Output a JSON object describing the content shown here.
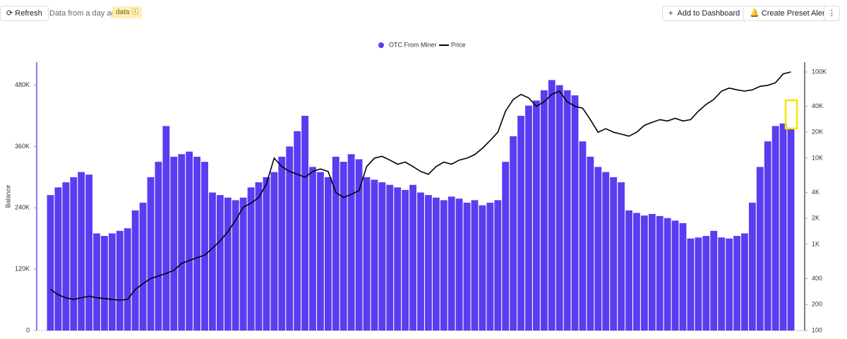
{
  "toolbar": {
    "refresh": "Refresh",
    "status": "Data from a day ago",
    "badge": "data",
    "add": "Add to Dashboard",
    "alert": "Create Preset Alert"
  },
  "chart_data": {
    "type": "combo",
    "y_label": "Balance",
    "categories": [
      null,
      null,
      null,
      null,
      null,
      null,
      null,
      null,
      null,
      null,
      null,
      null,
      null,
      null,
      null,
      null,
      null,
      null,
      null,
      null,
      null,
      null,
      null,
      null,
      null,
      null,
      null,
      null,
      null,
      null,
      null,
      null,
      null,
      null,
      null,
      null,
      null,
      null,
      null,
      null,
      null,
      null,
      null,
      null,
      null,
      null,
      null,
      null,
      null,
      null,
      null,
      null,
      null,
      null,
      null,
      null,
      null,
      null,
      null,
      null,
      null,
      null,
      null,
      null,
      null,
      null,
      null,
      null,
      null,
      null,
      null,
      null,
      null,
      null,
      null,
      null,
      null,
      null,
      null,
      null,
      null,
      null,
      null,
      null,
      null,
      null,
      null,
      null,
      null,
      null,
      null,
      null,
      null,
      null,
      null,
      null,
      null
    ],
    "series": [
      {
        "name": "OTC From Miner",
        "type": "bar",
        "color": "#5b3cf0",
        "values": [
          265000,
          280000,
          290000,
          300000,
          310000,
          305000,
          190000,
          185000,
          190000,
          195000,
          200000,
          235000,
          250000,
          300000,
          330000,
          400000,
          340000,
          345000,
          350000,
          340000,
          330000,
          270000,
          265000,
          260000,
          255000,
          260000,
          280000,
          290000,
          300000,
          310000,
          340000,
          360000,
          390000,
          420000,
          320000,
          310000,
          300000,
          340000,
          330000,
          345000,
          335000,
          300000,
          295000,
          290000,
          285000,
          280000,
          275000,
          285000,
          270000,
          265000,
          260000,
          255000,
          262000,
          258000,
          250000,
          255000,
          245000,
          250000,
          255000,
          330000,
          380000,
          420000,
          440000,
          450000,
          470000,
          490000,
          480000,
          470000,
          460000,
          370000,
          340000,
          320000,
          310000,
          300000,
          290000,
          235000,
          230000,
          225000,
          228000,
          224000,
          220000,
          215000,
          210000,
          180000,
          182000,
          185000,
          195000,
          182000,
          180000,
          185000,
          190000,
          250000,
          320000,
          370000,
          400000,
          405000,
          395000
        ]
      },
      {
        "name": "Price",
        "type": "line",
        "axis": "y2",
        "color": "#000000",
        "values": [
          300,
          260,
          240,
          230,
          240,
          250,
          240,
          235,
          230,
          225,
          230,
          300,
          350,
          400,
          430,
          460,
          500,
          600,
          650,
          700,
          750,
          900,
          1100,
          1400,
          1900,
          2700,
          3000,
          3500,
          5000,
          10000,
          8000,
          7000,
          6500,
          6000,
          7000,
          7500,
          7000,
          4000,
          3500,
          3800,
          4200,
          8000,
          10000,
          10500,
          9500,
          8500,
          9000,
          8000,
          7000,
          6500,
          8000,
          9000,
          8500,
          9500,
          10000,
          11000,
          13000,
          16000,
          20000,
          35000,
          48000,
          55000,
          50000,
          40000,
          45000,
          55000,
          60000,
          45000,
          40000,
          38000,
          28000,
          20000,
          22000,
          20000,
          19000,
          18000,
          20000,
          24000,
          26000,
          28000,
          27000,
          29000,
          27000,
          28000,
          35000,
          42000,
          48000,
          60000,
          65000,
          62000,
          60000,
          62000,
          68000,
          70000,
          75000,
          95000,
          100000
        ]
      }
    ],
    "ylim": [
      0,
      525000
    ],
    "yticks": [
      0,
      {
        "value": 120000,
        "label": "120K"
      },
      {
        "value": 240000,
        "label": "240K"
      },
      {
        "value": 360000,
        "label": "360K"
      },
      {
        "value": 480000,
        "label": "480K"
      }
    ],
    "y2lim": [
      100,
      130000
    ],
    "y2_scale": "log",
    "y2ticks": [
      100,
      200,
      400,
      {
        "value": 1000,
        "label": "1K"
      },
      {
        "value": 2000,
        "label": "2K"
      },
      {
        "value": 4000,
        "label": "4K"
      },
      {
        "value": 10000,
        "label": "10K"
      },
      {
        "value": 20000,
        "label": "20K"
      },
      {
        "value": 40000,
        "label": "40K"
      },
      {
        "value": 100000,
        "label": "100K"
      }
    ]
  }
}
